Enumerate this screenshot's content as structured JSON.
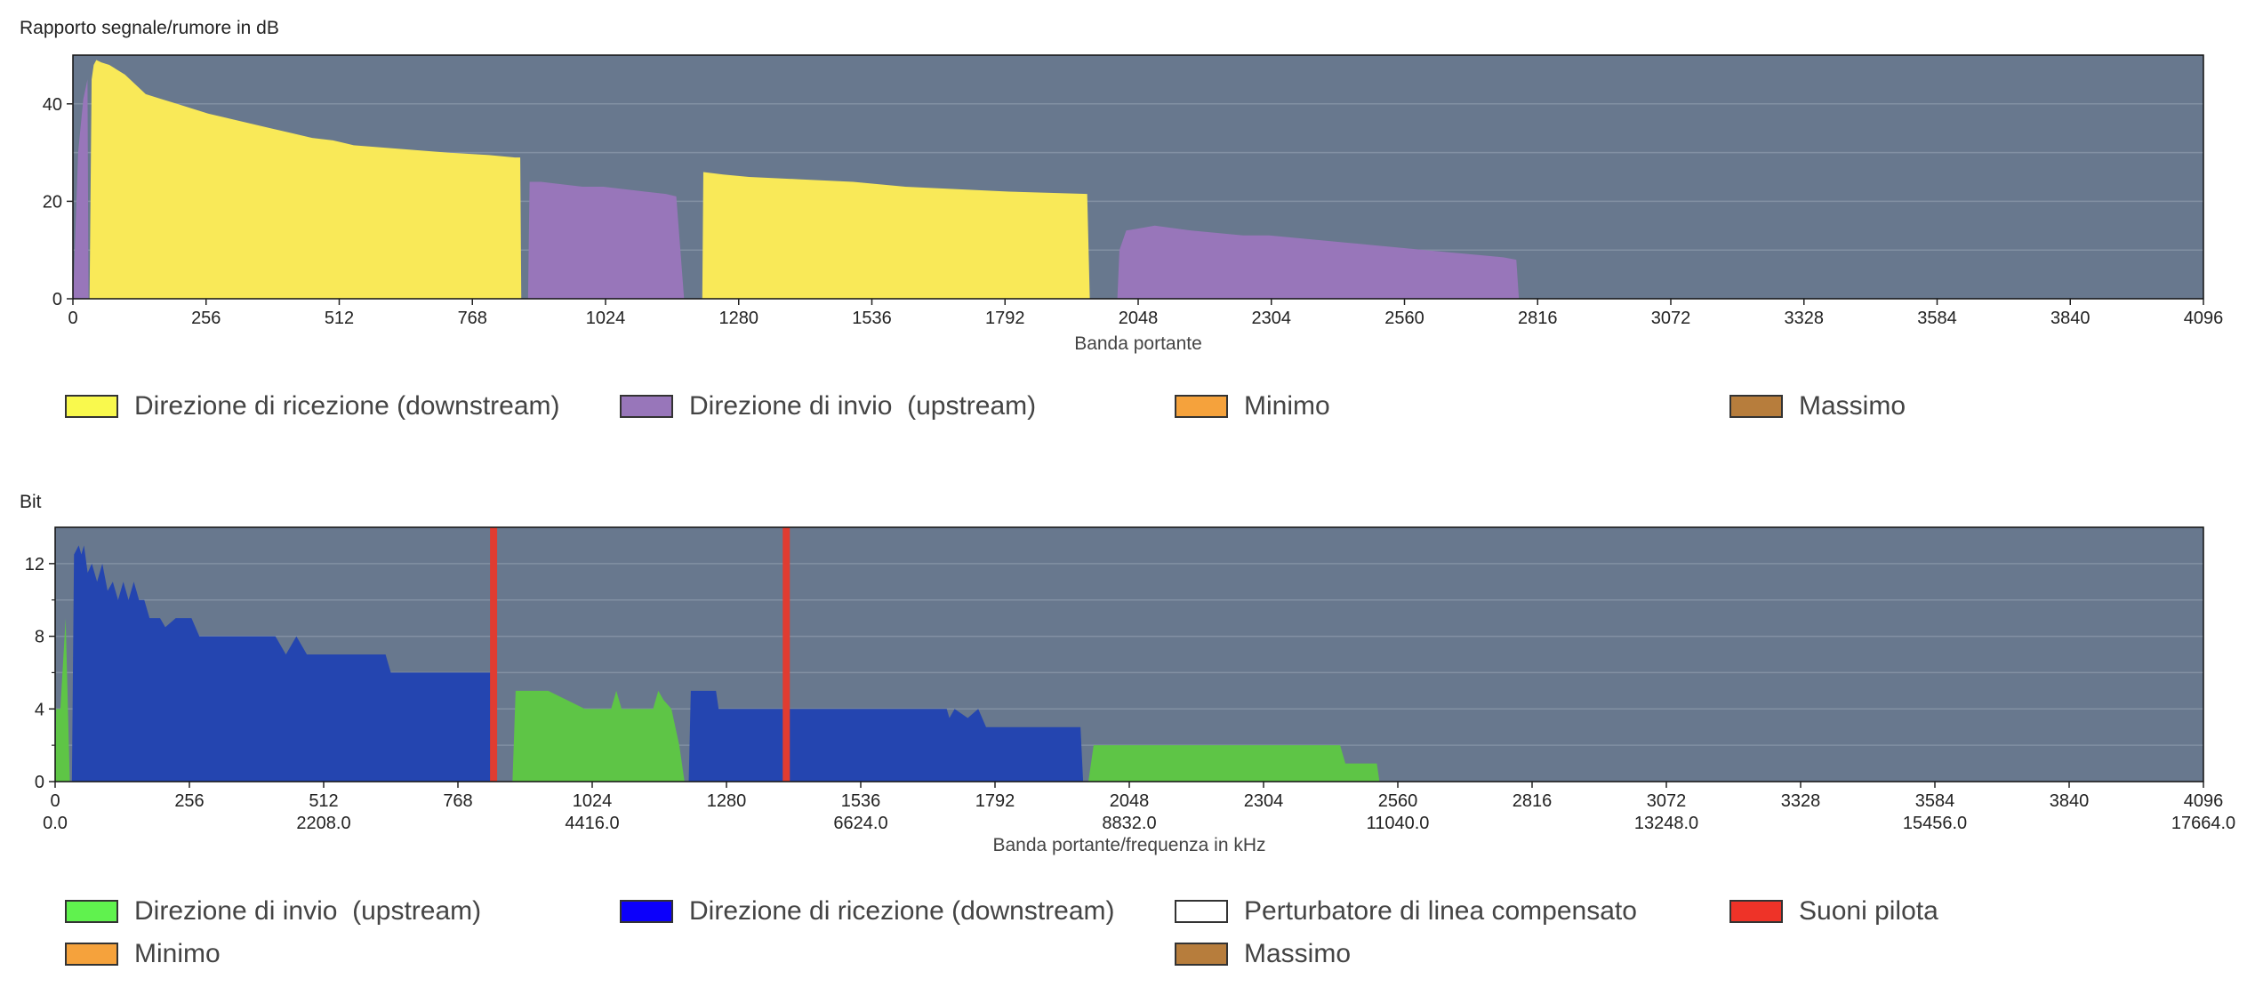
{
  "chart_data": [
    {
      "type": "area",
      "ylabel": "Rapporto segnale/rumore in dB",
      "xlabel": "Banda portante",
      "xlim": [
        0,
        4096
      ],
      "ylim": [
        0,
        50
      ],
      "yticks": [
        0,
        20,
        40
      ],
      "xticks": [
        0,
        256,
        512,
        768,
        1024,
        1280,
        1536,
        1792,
        2048,
        2304,
        2560,
        2816,
        3072,
        3328,
        3584,
        3840,
        4096
      ],
      "grid": "horizontal",
      "series": [
        {
          "name": "Direzione di invio  (upstream)",
          "color": "#9876ba",
          "points": [
            [
              0,
              0
            ],
            [
              2,
              5
            ],
            [
              10,
              30
            ],
            [
              20,
              41
            ],
            [
              28,
              45
            ],
            [
              30,
              0
            ],
            [
              875,
              0
            ],
            [
              878,
              24
            ],
            [
              900,
              24
            ],
            [
              940,
              23.5
            ],
            [
              980,
              23
            ],
            [
              1020,
              23
            ],
            [
              1060,
              22.5
            ],
            [
              1100,
              22
            ],
            [
              1140,
              21.5
            ],
            [
              1160,
              21
            ],
            [
              1175,
              0
            ],
            [
              2008,
              0
            ],
            [
              2012,
              10
            ],
            [
              2025,
              14
            ],
            [
              2080,
              15
            ],
            [
              2150,
              14
            ],
            [
              2200,
              13.5
            ],
            [
              2250,
              13
            ],
            [
              2300,
              13
            ],
            [
              2350,
              12.5
            ],
            [
              2400,
              12
            ],
            [
              2450,
              11.5
            ],
            [
              2500,
              11
            ],
            [
              2550,
              10.5
            ],
            [
              2600,
              10
            ],
            [
              2650,
              9.5
            ],
            [
              2700,
              9
            ],
            [
              2750,
              8.5
            ],
            [
              2775,
              8
            ],
            [
              2780,
              0
            ]
          ]
        },
        {
          "name": "Direzione di ricezione (downstream)",
          "color": "#f9e958",
          "points": [
            [
              32,
              0
            ],
            [
              36,
              45
            ],
            [
              40,
              48
            ],
            [
              45,
              49
            ],
            [
              55,
              48.5
            ],
            [
              70,
              48
            ],
            [
              85,
              47
            ],
            [
              100,
              46
            ],
            [
              120,
              44
            ],
            [
              140,
              42
            ],
            [
              170,
              41
            ],
            [
              200,
              40
            ],
            [
              230,
              39
            ],
            [
              260,
              38
            ],
            [
              300,
              37
            ],
            [
              340,
              36
            ],
            [
              380,
              35
            ],
            [
              420,
              34
            ],
            [
              460,
              33
            ],
            [
              500,
              32.5
            ],
            [
              540,
              31.5
            ],
            [
              600,
              31
            ],
            [
              660,
              30.5
            ],
            [
              720,
              30
            ],
            [
              800,
              29.5
            ],
            [
              850,
              29
            ],
            [
              860,
              29
            ],
            [
              862,
              0
            ],
            [
              1210,
              0
            ],
            [
              1212,
              26
            ],
            [
              1250,
              25.5
            ],
            [
              1300,
              25
            ],
            [
              1400,
              24.5
            ],
            [
              1500,
              24
            ],
            [
              1600,
              23
            ],
            [
              1700,
              22.5
            ],
            [
              1800,
              22
            ],
            [
              1950,
              21.5
            ],
            [
              1955,
              0
            ]
          ]
        }
      ],
      "legend": [
        {
          "name": "Direzione di ricezione (downstream)",
          "color": "#f9f94d"
        },
        {
          "name": "Direzione di invio  (upstream)",
          "color": "#9876ba"
        },
        {
          "name": "Minimo",
          "color": "#f5a23c"
        },
        {
          "name": "Massimo",
          "color": "#b77d3c"
        }
      ]
    },
    {
      "type": "area",
      "ylabel": "Bit",
      "xlabel": "Banda portante/frequenza in kHz",
      "xlim": [
        0,
        4096
      ],
      "ylim": [
        0,
        14
      ],
      "yticks": [
        0,
        4,
        8,
        12
      ],
      "xticks": [
        0,
        256,
        512,
        768,
        1024,
        1280,
        1536,
        1792,
        2048,
        2304,
        2560,
        2816,
        3072,
        3328,
        3584,
        3840,
        4096
      ],
      "xticks_freq": {
        "0": "0.0",
        "512": "2208.0",
        "1024": "4416.0",
        "1536": "6624.0",
        "2048": "8832.0",
        "2560": "11040.0",
        "3072": "13248.0",
        "3584": "15456.0",
        "4096": "17664.0"
      },
      "grid": "horizontal",
      "series": [
        {
          "name": "Direzione di invio  (upstream)",
          "color": "#5ec546",
          "points": [
            [
              0,
              0
            ],
            [
              2,
              4
            ],
            [
              10,
              4
            ],
            [
              20,
              9
            ],
            [
              28,
              0
            ],
            [
              872,
              0
            ],
            [
              878,
              5
            ],
            [
              940,
              5
            ],
            [
              1010,
              4
            ],
            [
              1060,
              4
            ],
            [
              1070,
              5
            ],
            [
              1080,
              4
            ],
            [
              1140,
              4
            ],
            [
              1150,
              5
            ],
            [
              1160,
              4.5
            ],
            [
              1175,
              4
            ],
            [
              1190,
              2
            ],
            [
              1200,
              0
            ],
            [
              1970,
              0
            ],
            [
              1980,
              2
            ],
            [
              2450,
              2
            ],
            [
              2460,
              1
            ],
            [
              2520,
              1
            ],
            [
              2525,
              0
            ]
          ]
        },
        {
          "name": "Direzione di ricezione (downstream)",
          "color": "#2445b0",
          "points": [
            [
              32,
              0
            ],
            [
              36,
              12.5
            ],
            [
              45,
              13
            ],
            [
              50,
              12.5
            ],
            [
              55,
              13
            ],
            [
              62,
              11.5
            ],
            [
              70,
              12
            ],
            [
              80,
              11
            ],
            [
              90,
              12
            ],
            [
              100,
              10.5
            ],
            [
              110,
              11
            ],
            [
              120,
              10
            ],
            [
              130,
              11
            ],
            [
              140,
              10
            ],
            [
              150,
              11
            ],
            [
              160,
              10
            ],
            [
              170,
              10
            ],
            [
              180,
              9
            ],
            [
              200,
              9
            ],
            [
              210,
              8.5
            ],
            [
              230,
              9
            ],
            [
              260,
              9
            ],
            [
              275,
              8
            ],
            [
              420,
              8
            ],
            [
              440,
              7
            ],
            [
              460,
              8
            ],
            [
              480,
              7
            ],
            [
              630,
              7
            ],
            [
              640,
              6
            ],
            [
              780,
              6
            ],
            [
              830,
              6
            ],
            [
              835,
              0
            ],
            [
              1208,
              0
            ],
            [
              1212,
              5
            ],
            [
              1260,
              5
            ],
            [
              1265,
              4
            ],
            [
              1700,
              4
            ],
            [
              1705,
              3.5
            ],
            [
              1715,
              4
            ],
            [
              1740,
              3.5
            ],
            [
              1760,
              4
            ],
            [
              1775,
              3
            ],
            [
              1955,
              3
            ],
            [
              1960,
              0
            ]
          ]
        }
      ],
      "pilot_tones": [
        836,
        1394
      ],
      "pilot_color": "#e03c31",
      "legend": [
        {
          "name": "Direzione di invio  (upstream)",
          "color": "#60f24e"
        },
        {
          "name": "Direzione di ricezione (downstream)",
          "color": "#0c00fb"
        },
        {
          "name": "Perturbatore di linea compensato",
          "color": "#ffffff"
        },
        {
          "name": "Suoni pilota",
          "color": "#ee3328"
        },
        {
          "name": "Minimo",
          "color": "#f5a23c"
        },
        {
          "name": "Massimo",
          "color": "#b77d3c"
        }
      ]
    }
  ]
}
